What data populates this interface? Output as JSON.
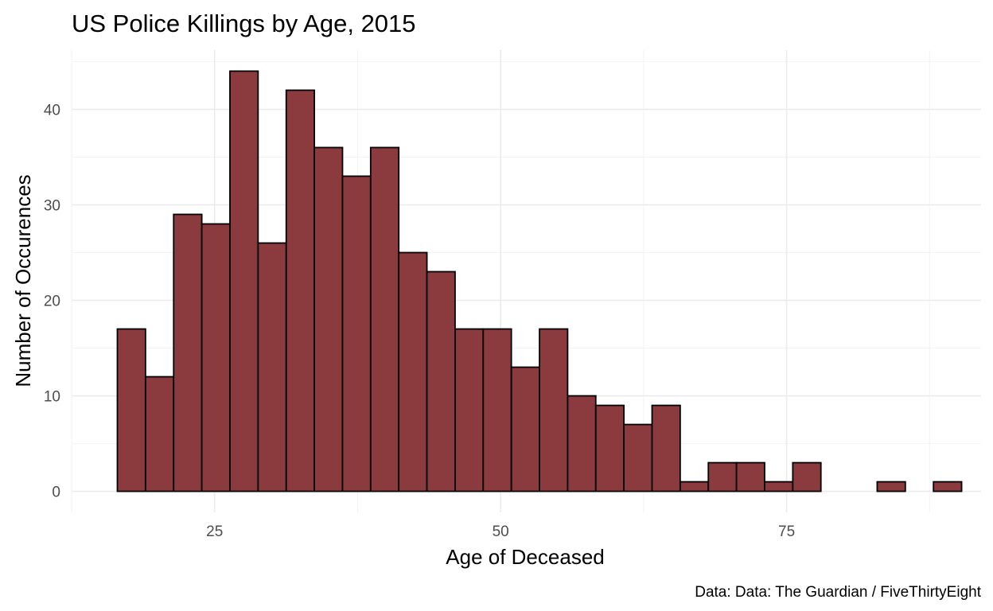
{
  "chart_data": {
    "type": "bar",
    "title": "US Police Killings by Age, 2015",
    "xlabel": "Age of Deceased",
    "ylabel": "Number of Occurences",
    "caption": "Data: Data: The Guardian / FiveThirtyEight",
    "x_ticks": [
      25,
      50,
      75
    ],
    "y_ticks": [
      0,
      10,
      20,
      30,
      40
    ],
    "xlim": [
      12.5,
      92
    ],
    "ylim": [
      -2.2,
      46.2
    ],
    "bin_width": 2.46,
    "bins_start": 16.5,
    "values": [
      17,
      12,
      29,
      28,
      44,
      26,
      42,
      36,
      33,
      36,
      25,
      23,
      17,
      17,
      13,
      17,
      10,
      9,
      7,
      9,
      1,
      3,
      3,
      1,
      3,
      0,
      0,
      1,
      0,
      1
    ],
    "grid": true,
    "legend": "none",
    "colors": {
      "bar_fill": "#8b3a3e",
      "bar_stroke": "#000000",
      "grid_major": "#ebebeb",
      "grid_minor": "#f3f3f3"
    }
  }
}
